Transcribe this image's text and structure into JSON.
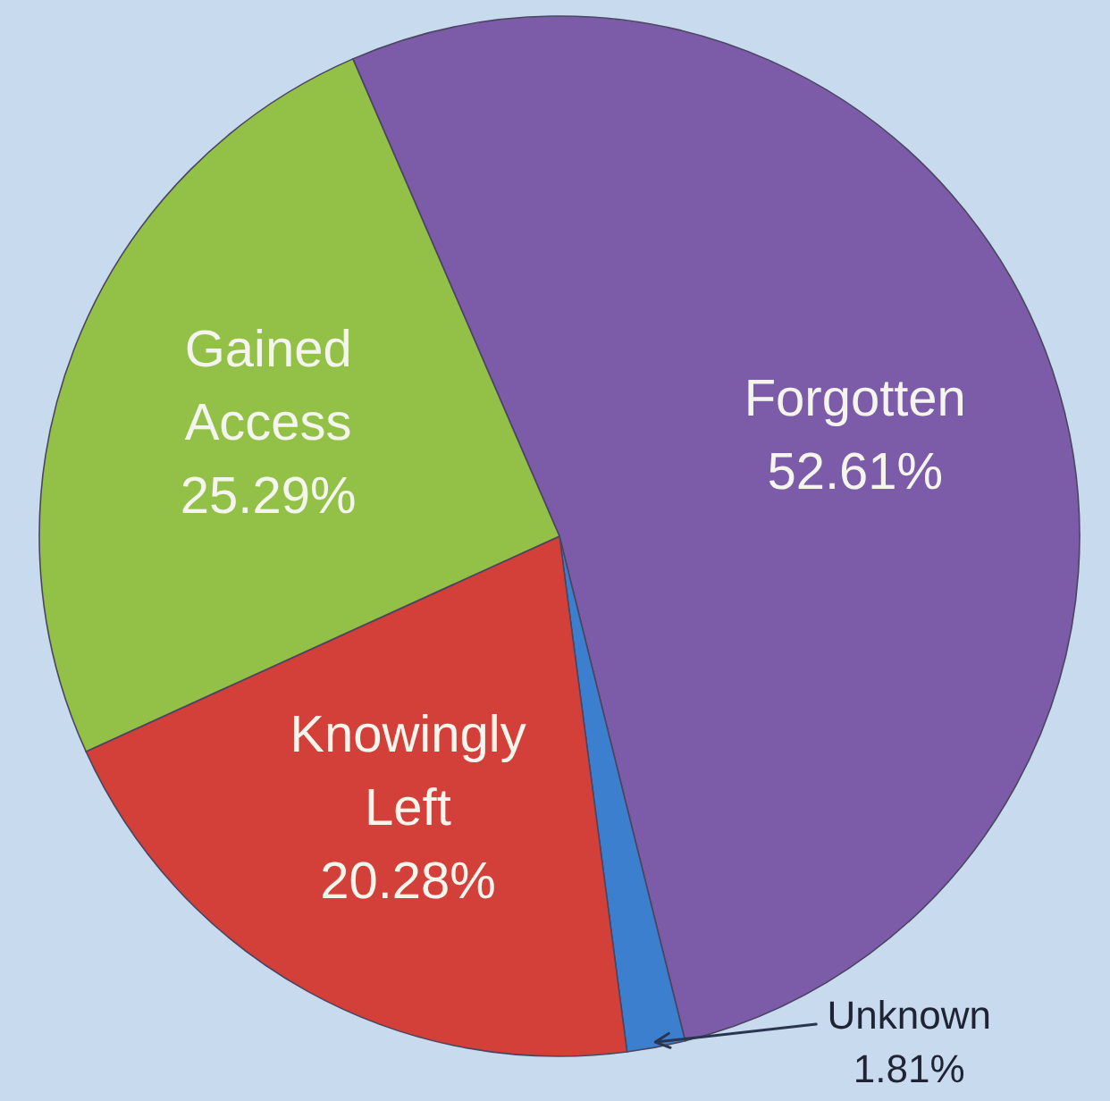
{
  "chart_data": {
    "type": "pie",
    "categories": [
      "Forgotten",
      "Unknown",
      "Knowingly Left",
      "Gained Access"
    ],
    "values": [
      52.61,
      1.81,
      20.28,
      25.29
    ],
    "value_labels": [
      "52.61%",
      "1.81%",
      "20.28%",
      "25.29%"
    ],
    "colors": [
      "#7c5ba8",
      "#3d7fcf",
      "#d3403a",
      "#93c047"
    ]
  }
}
